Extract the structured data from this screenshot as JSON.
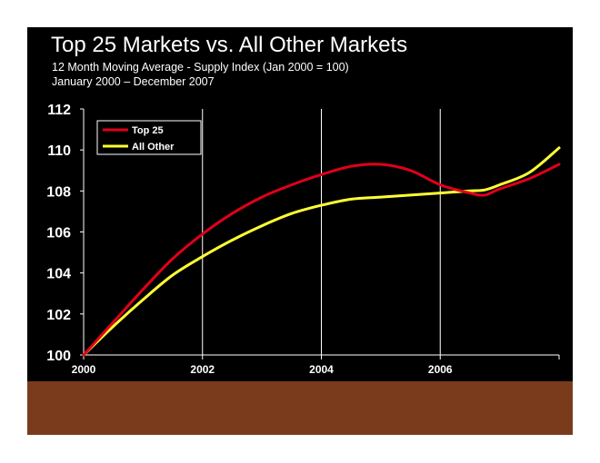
{
  "chart_data": {
    "type": "line",
    "title": "Top 25 Markets vs. All Other Markets",
    "subtitle": "12 Month Moving Average - Supply Index (Jan 2000 = 100)",
    "date_range": "January 2000 – December 2007",
    "xlabel": "",
    "ylabel": "",
    "xlim": [
      2000,
      2008
    ],
    "ylim": [
      100,
      112
    ],
    "x_ticks": [
      "2000",
      "2002",
      "2004",
      "2006"
    ],
    "y_ticks": [
      "100",
      "102",
      "104",
      "106",
      "108",
      "110",
      "112"
    ],
    "legend_position": "top-left",
    "x": [
      2000.0,
      2000.5,
      2001.0,
      2001.5,
      2002.0,
      2002.5,
      2003.0,
      2003.5,
      2004.0,
      2004.5,
      2005.0,
      2005.5,
      2006.0,
      2006.5,
      2006.75,
      2007.0,
      2007.5,
      2008.0
    ],
    "series": [
      {
        "name": "Top 25",
        "color": "#e0001b",
        "values": [
          100.0,
          101.6,
          103.2,
          104.7,
          105.9,
          106.9,
          107.7,
          108.3,
          108.8,
          109.2,
          109.3,
          109.0,
          108.3,
          107.9,
          107.8,
          108.1,
          108.6,
          109.3
        ]
      },
      {
        "name": "All Other",
        "color": "#ffff33",
        "values": [
          100.0,
          101.4,
          102.7,
          103.9,
          104.8,
          105.6,
          106.3,
          106.9,
          107.3,
          107.6,
          107.7,
          107.8,
          107.9,
          108.0,
          108.05,
          108.3,
          108.9,
          110.1
        ]
      }
    ]
  }
}
